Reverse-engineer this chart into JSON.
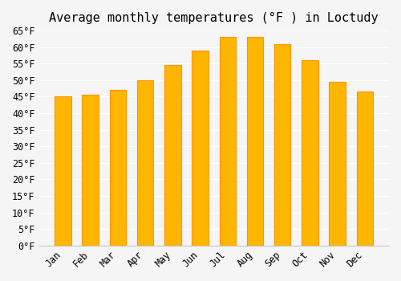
{
  "title": "Average monthly temperatures (°F ) in Loctudy",
  "months": [
    "Jan",
    "Feb",
    "Mar",
    "Apr",
    "May",
    "Jun",
    "Jul",
    "Aug",
    "Sep",
    "Oct",
    "Nov",
    "Dec"
  ],
  "values": [
    45,
    45.5,
    47,
    50,
    54.5,
    59,
    63,
    63,
    61,
    56,
    49.5,
    46.5
  ],
  "bar_color": "#FFA500",
  "bar_edge_color": "#FF8C00",
  "background_color": "#f5f5f5",
  "grid_color": "#ffffff",
  "ylim": [
    0,
    65
  ],
  "yticks": [
    0,
    5,
    10,
    15,
    20,
    25,
    30,
    35,
    40,
    45,
    50,
    55,
    60,
    65
  ],
  "title_fontsize": 11,
  "tick_fontsize": 8.5
}
